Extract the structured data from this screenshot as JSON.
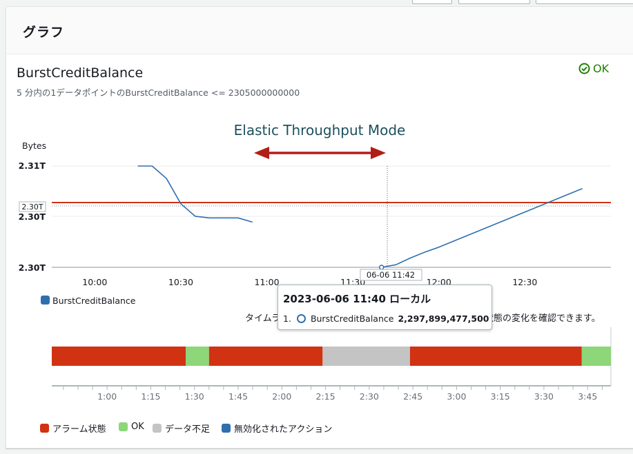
{
  "panel": {
    "title": "グラフ"
  },
  "metric": {
    "title": "BurstCreditBalance",
    "subtitle": "5 分内の1データポイントのBurstCreditBalance <= 2305000000000",
    "status_label": "OK"
  },
  "annotation": {
    "text": "Elastic Throughput Mode"
  },
  "chart_data": [
    {
      "type": "line",
      "ylabel": "Bytes",
      "ytick_labels": [
        "2.31T",
        "2.30T",
        "2.30T"
      ],
      "xtick_labels": [
        "10:00",
        "10:30",
        "11:00",
        "11:30",
        "12:00",
        "12:30"
      ],
      "threshold": {
        "label": "2.30T",
        "value": 2305000000000,
        "color": "#d13212"
      },
      "series": [
        {
          "name": "BurstCreditBalance",
          "color": "#2e6faf",
          "segments": [
            [
              {
                "x": "10:15",
                "y": 2310000000000
              },
              {
                "x": "10:20",
                "y": 2310000000000
              },
              {
                "x": "10:25",
                "y": 2308500000000
              },
              {
                "x": "10:30",
                "y": 2305500000000
              },
              {
                "x": "10:35",
                "y": 2304000000000
              },
              {
                "x": "10:40",
                "y": 2303800000000
              },
              {
                "x": "10:45",
                "y": 2303800000000
              },
              {
                "x": "10:50",
                "y": 2303800000000
              },
              {
                "x": "10:55",
                "y": 2303300000000
              }
            ],
            [
              {
                "x": "11:40",
                "y": 2297899477500
              },
              {
                "x": "11:45",
                "y": 2298200000000
              },
              {
                "x": "11:50",
                "y": 2299000000000
              },
              {
                "x": "11:55",
                "y": 2299700000000
              },
              {
                "x": "12:00",
                "y": 2300300000000
              },
              {
                "x": "12:05",
                "y": 2301000000000
              },
              {
                "x": "12:10",
                "y": 2301700000000
              },
              {
                "x": "12:15",
                "y": 2302400000000
              },
              {
                "x": "12:20",
                "y": 2303100000000
              },
              {
                "x": "12:25",
                "y": 2303800000000
              },
              {
                "x": "12:30",
                "y": 2304500000000
              },
              {
                "x": "12:35",
                "y": 2305200000000
              },
              {
                "x": "12:40",
                "y": 2305900000000
              },
              {
                "x": "12:45",
                "y": 2306600000000
              },
              {
                "x": "12:50",
                "y": 2307300000000
              }
            ]
          ]
        }
      ],
      "crosshair_label": "06-06 11:42"
    },
    {
      "type": "timeline",
      "xtick_labels": [
        "1:00",
        "1:15",
        "1:30",
        "1:45",
        "2:00",
        "2:15",
        "2:30",
        "2:45",
        "3:00",
        "3:15",
        "3:30",
        "3:45"
      ],
      "states": [
        {
          "state": "alarm",
          "start": "0:41",
          "end": "1:27"
        },
        {
          "state": "ok",
          "start": "1:27",
          "end": "1:35"
        },
        {
          "state": "alarm",
          "start": "1:35",
          "end": "2:14"
        },
        {
          "state": "insufficient",
          "start": "2:14",
          "end": "2:44"
        },
        {
          "state": "alarm",
          "start": "2:44",
          "end": "3:43"
        },
        {
          "state": "ok",
          "start": "3:43",
          "end": "3:53"
        }
      ]
    }
  ],
  "legend": {
    "series_label": "BurstCreditBalance"
  },
  "tooltip": {
    "title": "2023-06-06 11:40 ローカル",
    "index": "1.",
    "series": "BurstCreditBalance",
    "value": "2,297,899,477,500"
  },
  "timeline": {
    "message_left": "タイムラ",
    "message_right": "状態の変化を確認できます。"
  },
  "state_legend": [
    {
      "label": "アラーム状態",
      "color": "#d13212"
    },
    {
      "label": "OK",
      "color": "#8ed67a"
    },
    {
      "label": "データ不足",
      "color": "#c4c4c4"
    },
    {
      "label": "無効化されたアクション",
      "color": "#2e6faf"
    }
  ],
  "colors": {
    "alarm": "#d13212",
    "ok": "#8ed67a",
    "insufficient": "#c4c4c4",
    "series": "#2e6faf",
    "annotation_text": "#1d4f5e",
    "annotation_arrow": "#b01e16"
  }
}
